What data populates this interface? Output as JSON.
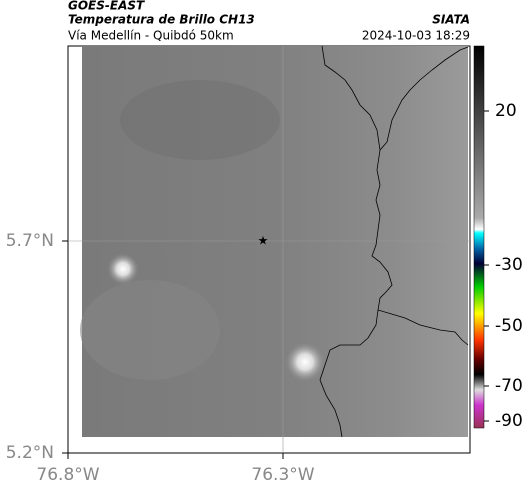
{
  "header": {
    "title": "GOES-EAST",
    "subtitle": "Temperatura de Brillo CH13",
    "source": "SIATA",
    "route": "Vía Medellín - Quibdó 50km",
    "timestamp": "2024-10-03 18:29"
  },
  "map": {
    "lat_labels": [
      "5.7°N",
      "5.2°N"
    ],
    "lon_labels": [
      "76.8°W",
      "76.3°W"
    ]
  },
  "colorbar": {
    "ticks": [
      "20",
      "-30",
      "-50",
      "-70",
      "-90"
    ]
  }
}
